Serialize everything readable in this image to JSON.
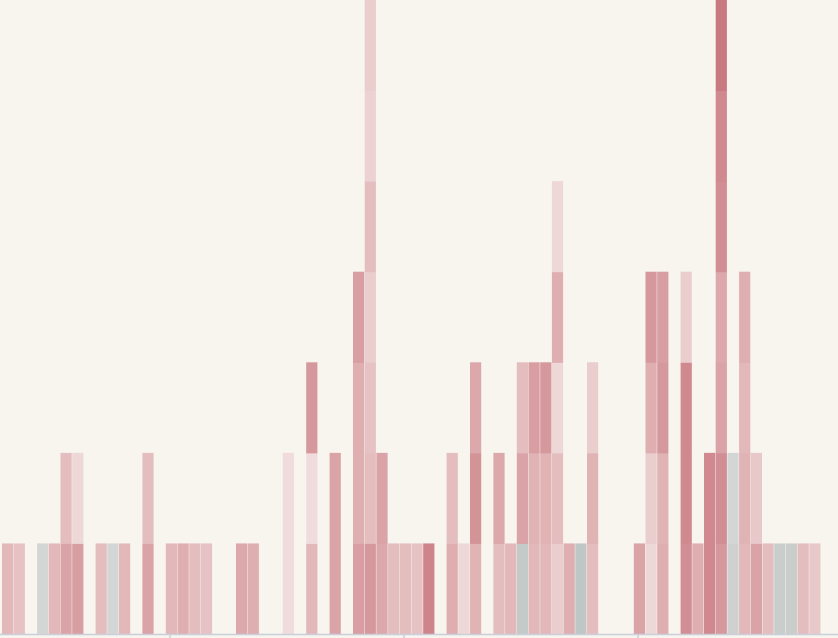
{
  "colors": {
    "background": "#f8f4ee",
    "axis": "#c9d0dc",
    "diverging_low": "#4e7a7f",
    "diverging_mid": "#f6ecea",
    "diverging_high": "#b9505a"
  },
  "chart_data": {
    "type": "heatmap",
    "title": "",
    "xlabel": "",
    "ylabel": "",
    "grid": false,
    "legend": "none",
    "value_range": [
      -3,
      3
    ],
    "n_columns": 70,
    "n_rows": 7,
    "columns": [
      [
        1.0
      ],
      [
        0.8
      ],
      [],
      [
        -0.6
      ],
      [
        1.0
      ],
      [
        1.4,
        0.9
      ],
      [
        1.5,
        0.4
      ],
      [],
      [
        0.9
      ],
      [
        -0.6
      ],
      [
        1.0
      ],
      [],
      [
        1.4,
        0.9
      ],
      [],
      [
        1.0
      ],
      [
        1.2
      ],
      [
        0.9
      ],
      [
        0.8
      ],
      [],
      [],
      [
        1.3
      ],
      [
        1.2
      ],
      [],
      [],
      [
        0.3,
        0.3
      ],
      [],
      [
        1.0,
        0.3,
        1.6
      ],
      [],
      [
        1.4,
        1.4
      ],
      [],
      [
        1.5,
        1.2,
        1.2,
        1.5
      ],
      [
        1.6,
        0.9,
        0.8,
        0.6,
        0.9,
        0.5,
        0.6
      ],
      [
        1.3,
        1.4
      ],
      [
        0.9
      ],
      [
        0.9
      ],
      [
        0.8
      ],
      [
        2.0
      ],
      [],
      [
        1.2,
        0.9
      ],
      [
        0.4
      ],
      [
        1.1,
        1.7,
        1.3
      ],
      [],
      [
        0.9,
        1.3
      ],
      [
        1.0
      ],
      [
        -0.9,
        1.4,
        0.9
      ],
      [
        1.0,
        1.1,
        1.5
      ],
      [
        1.0,
        1.1,
        1.6
      ],
      [
        0.6,
        0.9,
        0.4,
        1.2,
        0.4
      ],
      [
        1.2
      ],
      [
        -1.0
      ],
      [
        0.9,
        1.1,
        0.6
      ],
      [],
      [],
      [],
      [
        1.4
      ],
      [
        0.4,
        0.6,
        1.2,
        1.6
      ],
      [
        1.2,
        1.1,
        1.6,
        1.5
      ],
      [],
      [
        1.8,
        1.9,
        1.9,
        0.6
      ],
      [
        1.2
      ],
      [
        1.9,
        1.9
      ],
      [
        1.6,
        1.8,
        1.4,
        1.3,
        1.8,
        1.9,
        2.2
      ],
      [
        -0.7,
        -0.6
      ],
      [
        1.0,
        1.1,
        1.0,
        1.2
      ],
      [
        1.4,
        0.7
      ],
      [
        0.9
      ],
      [
        -0.8
      ],
      [
        -0.8
      ],
      [
        0.9
      ],
      [
        0.7
      ]
    ]
  }
}
